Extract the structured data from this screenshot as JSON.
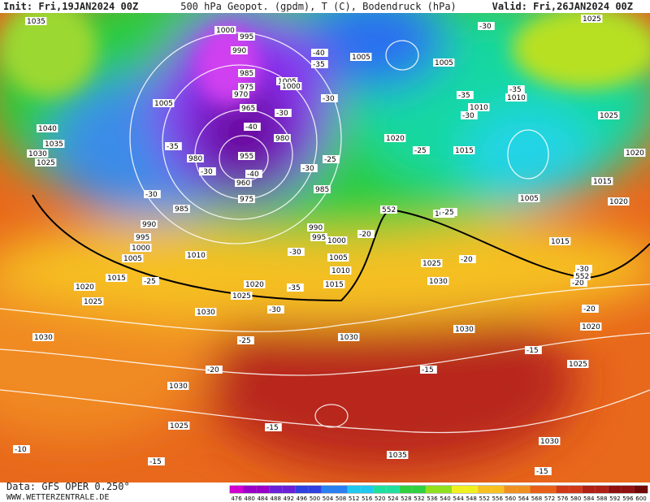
{
  "header": {
    "init": "Init: Fri,19JAN2024 00Z",
    "title": "500 hPa Geopot. (gpdm), T (C), Bodendruck (hPa)",
    "valid": "Valid: Fri,26JAN2024 00Z"
  },
  "footer": {
    "source": "Data: GFS OPER 0.250°",
    "site": "WWW.WETTERZENTRALE.DE"
  },
  "colorbar": {
    "labels": [
      "476",
      "480",
      "484",
      "488",
      "492",
      "496",
      "500",
      "504",
      "508",
      "512",
      "516",
      "520",
      "524",
      "528",
      "532",
      "536",
      "540",
      "544",
      "548",
      "552",
      "556",
      "560",
      "564",
      "568",
      "572",
      "576",
      "580",
      "584",
      "588",
      "592",
      "596",
      "600"
    ]
  },
  "pressure_labels": [
    "1035",
    "1000",
    "995",
    "990",
    "1005",
    "1005",
    "1025",
    "985",
    "975",
    "970",
    "1005",
    "1000",
    "965",
    "1010",
    "1010",
    "1005",
    "1040",
    "1035",
    "1030",
    "1025",
    "980",
    "955",
    "980",
    "1020",
    "1015",
    "1025",
    "1020",
    "960",
    "975",
    "985",
    "985",
    "1015",
    "1005",
    "1020",
    "1020",
    "990",
    "995",
    "1000",
    "1005",
    "1010",
    "990",
    "995",
    "1000",
    "1005",
    "1010",
    "1015",
    "1025",
    "1030",
    "1015",
    "1020",
    "1025",
    "1020",
    "1025",
    "1030",
    "1015",
    "1030",
    "1030",
    "1030",
    "1020",
    "1025",
    "1030",
    "1025",
    "1030",
    "1035"
  ],
  "temperature_labels": [
    "-30",
    "-40",
    "-35",
    "-30",
    "-35",
    "-35",
    "-30",
    "-40",
    "-30",
    "-35",
    "-25",
    "-30",
    "-30",
    "-40",
    "-30",
    "-25",
    "-25",
    "-20",
    "-30",
    "-35",
    "-25",
    "-30",
    "-20",
    "-30",
    "-20",
    "-20",
    "-25",
    "-20",
    "-15",
    "-15",
    "-15",
    "-10",
    "-15",
    "-15"
  ],
  "height_labels": [
    "552",
    "552"
  ]
}
